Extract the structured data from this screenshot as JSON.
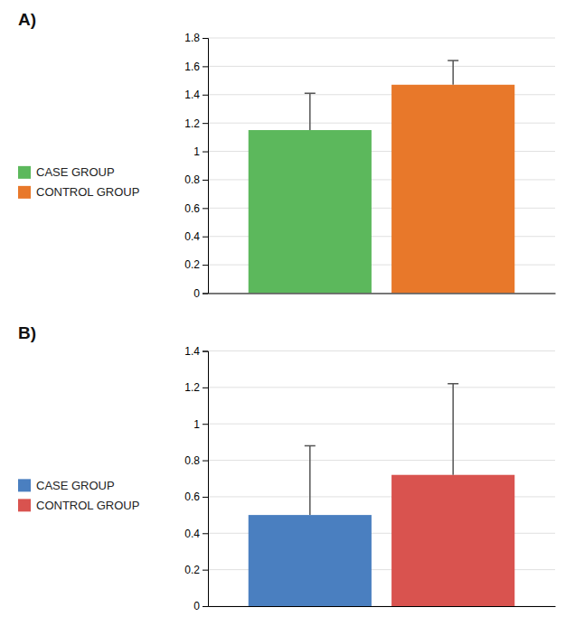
{
  "chart_data": [
    {
      "type": "bar",
      "title": "A)",
      "categories": [
        null
      ],
      "series": [
        {
          "name": "CASE GROUP",
          "color": "#5CB85C",
          "values": [
            1.15
          ],
          "errors": [
            0.26
          ]
        },
        {
          "name": "CONTROL GROUP",
          "color": "#E8782A",
          "values": [
            1.47
          ],
          "errors": [
            0.17
          ]
        }
      ],
      "ylim": [
        0,
        1.8
      ],
      "yticks": [
        0,
        0.2,
        0.4,
        0.6,
        0.8,
        1,
        1.2,
        1.4,
        1.6,
        1.8
      ],
      "grid": true,
      "legend": "left",
      "tick_labels": "y"
    },
    {
      "type": "bar",
      "title": "B)",
      "categories": [
        null
      ],
      "series": [
        {
          "name": "CASE GROUP",
          "color": "#4A7FC0",
          "values": [
            0.5
          ],
          "errors": [
            0.38
          ]
        },
        {
          "name": "CONTROL GROUP",
          "color": "#D9534F",
          "values": [
            0.72
          ],
          "errors": [
            0.5
          ]
        }
      ],
      "ylim": [
        0,
        1.4
      ],
      "yticks": [
        0,
        0.2,
        0.4,
        0.6,
        0.8,
        1,
        1.2,
        1.4
      ],
      "grid": true,
      "legend": "left",
      "tick_labels": "y"
    }
  ]
}
